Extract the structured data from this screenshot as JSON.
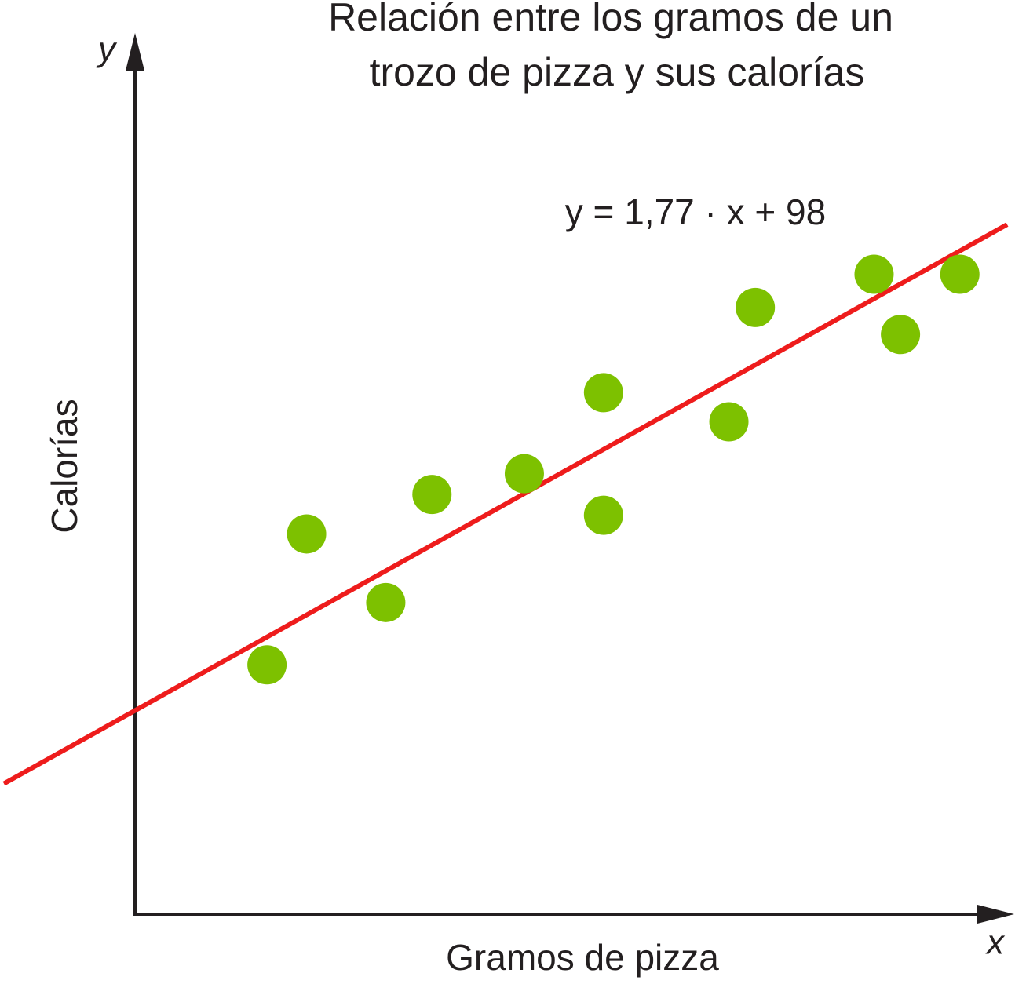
{
  "chart_data": {
    "type": "scatter",
    "title": [
      "Relación entre los gramos de un",
      "trozo de pizza y sus calorías"
    ],
    "x_label": "Gramos de pizza",
    "y_label": "Calorías",
    "x_axis_symbol": "x",
    "y_axis_symbol": "y",
    "x": [
      20,
      26,
      38,
      45,
      59,
      71,
      71,
      90,
      94,
      112,
      116,
      125
    ],
    "y": [
      120,
      183,
      150,
      202,
      212,
      251,
      192,
      237,
      292,
      308,
      279,
      308
    ],
    "color": "#7dc100",
    "xlim": [
      0,
      133
    ],
    "ylim": [
      0,
      423
    ],
    "trendline": {
      "slope": 1.77,
      "intercept": 98,
      "color": "#ee1c1c",
      "label": "y = 1,77 · x + 98"
    }
  }
}
